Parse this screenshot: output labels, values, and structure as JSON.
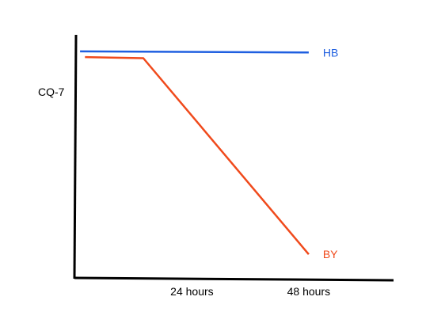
{
  "chart_data": {
    "type": "line",
    "title": "",
    "xlabel": "",
    "ylabel": "CQ-7",
    "x_tick_labels": [
      {
        "label": "24 hours",
        "hours": 24
      },
      {
        "label": "48 hours",
        "hours": 48
      }
    ],
    "xlim": [
      0,
      70
    ],
    "ylim": [
      0,
      1
    ],
    "grid": false,
    "series": [
      {
        "name": "HB",
        "color": "#1f5fe0",
        "points": [
          {
            "x": 1,
            "y": 0.99
          },
          {
            "x": 48,
            "y": 0.985
          }
        ]
      },
      {
        "name": "BY",
        "color": "#f04a1c",
        "points": [
          {
            "x": 2,
            "y": 0.965
          },
          {
            "x": 14,
            "y": 0.96
          },
          {
            "x": 48,
            "y": 0.1
          }
        ]
      }
    ]
  }
}
